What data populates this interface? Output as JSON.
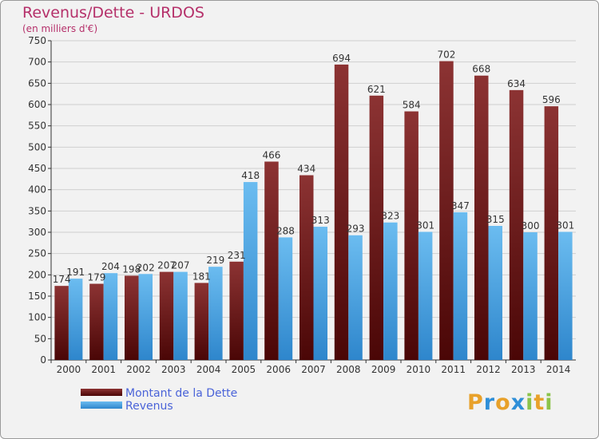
{
  "header": {
    "title": "Revenus/Dette - URDOS",
    "subtitle": "(en milliers d'€)"
  },
  "legend": {
    "items": [
      {
        "label": "Montant de la Dette",
        "color": "#6e1a1a"
      },
      {
        "label": "Revenus",
        "color": "#4aa6e6"
      }
    ]
  },
  "brand": {
    "letters": [
      "P",
      "r",
      "o",
      "x",
      "i",
      "t",
      "i"
    ],
    "colors": [
      "#e8a12a",
      "#2f8fd8",
      "#e8a12a",
      "#2f8fd8",
      "#8bc34a",
      "#e8a12a",
      "#8bc34a"
    ]
  },
  "colors": {
    "debt_light": "#8c3333",
    "debt_dark": "#4a0606",
    "rev_light": "#6bbcf0",
    "rev_dark": "#2e86cc",
    "grid": "#cfcfcf"
  },
  "chart_data": {
    "type": "bar",
    "title": "Revenus/Dette - URDOS",
    "ylabel": "(en milliers d'€)",
    "xlabel": "",
    "ylim": [
      0,
      750
    ],
    "ytick_step": 50,
    "grid": true,
    "legend_position": "bottom-left",
    "categories": [
      "2000",
      "2001",
      "2002",
      "2003",
      "2004",
      "2005",
      "2006",
      "2007",
      "2008",
      "2009",
      "2010",
      "2011",
      "2012",
      "2013",
      "2014"
    ],
    "series": [
      {
        "name": "Montant de la Dette",
        "values": [
          174,
          179,
          198,
          207,
          181,
          231,
          466,
          434,
          694,
          621,
          584,
          702,
          668,
          634,
          596
        ]
      },
      {
        "name": "Revenus",
        "values": [
          191,
          204,
          202,
          207,
          219,
          418,
          288,
          313,
          293,
          323,
          301,
          347,
          315,
          300,
          301
        ]
      }
    ]
  }
}
